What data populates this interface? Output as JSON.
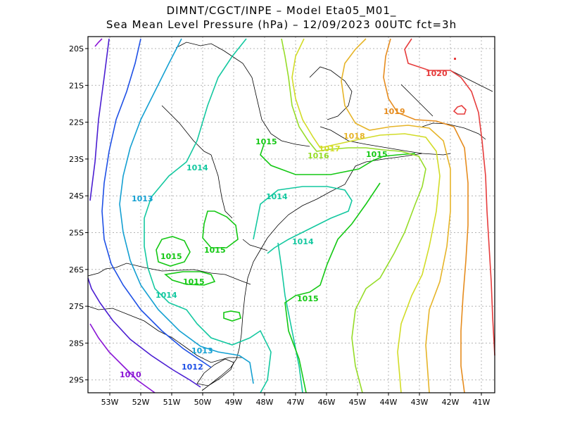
{
  "header": {
    "line1": "DIMNT/CGCT/INPE –  Model Eta05_M01_",
    "line2": "Sea Mean Level Pressure (hPa) – 12/09/2023 00UTC fct=3h"
  },
  "axes": {
    "lat_ticks": [
      "20S",
      "21S",
      "22S",
      "23S",
      "24S",
      "25S",
      "26S",
      "27S",
      "28S",
      "29S"
    ],
    "lon_ticks": [
      "53W",
      "52W",
      "51W",
      "50W",
      "49W",
      "48W",
      "47W",
      "46W",
      "45W",
      "44W",
      "43W",
      "42W",
      "41W"
    ],
    "grid": true
  },
  "contour_colors": {
    "1010": "#8a14d6",
    "1011": "#4b1ed2",
    "1012": "#1e50e6",
    "1013": "#14a0d2",
    "1014": "#14c8a0",
    "1015": "#14c814",
    "1016": "#96dc28",
    "1017": "#d2dc28",
    "1018": "#e6b428",
    "1019": "#e68c1e",
    "1020": "#e63c3c"
  },
  "contour_labels": [
    {
      "text": "1010",
      "level": "1010"
    },
    {
      "text": "1012",
      "level": "1012"
    },
    {
      "text": "1013",
      "level": "1013"
    },
    {
      "text": "1013",
      "level": "1013"
    },
    {
      "text": "1014",
      "level": "1014"
    },
    {
      "text": "1014",
      "level": "1014"
    },
    {
      "text": "1014",
      "level": "1014"
    },
    {
      "text": "1014",
      "level": "1014"
    },
    {
      "text": "1015",
      "level": "1015"
    },
    {
      "text": "1015",
      "level": "1015"
    },
    {
      "text": "1015",
      "level": "1015"
    },
    {
      "text": "1015",
      "level": "1015"
    },
    {
      "text": "1015",
      "level": "1015"
    },
    {
      "text": "1015",
      "level": "1015"
    },
    {
      "text": "1016",
      "level": "1016"
    },
    {
      "text": "1017",
      "level": "1017"
    },
    {
      "text": "1018",
      "level": "1018"
    },
    {
      "text": "1019",
      "level": "1019"
    },
    {
      "text": "1020",
      "level": "1020"
    }
  ]
}
